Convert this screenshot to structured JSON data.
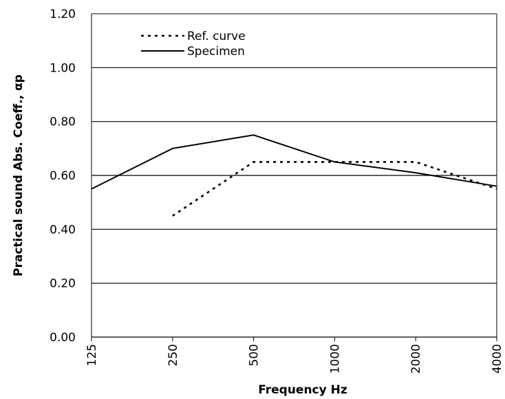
{
  "chart_data": {
    "type": "line",
    "title": "",
    "xlabel": "Frequency Hz",
    "ylabel": "Practical sound Abs. Coeff., αp",
    "categories": [
      "125",
      "250",
      "500",
      "1000",
      "2000",
      "4000"
    ],
    "y_ticks": [
      "0.00",
      "0.20",
      "0.40",
      "0.60",
      "0.80",
      "1.00",
      "1.20"
    ],
    "ylim": [
      0,
      1.2
    ],
    "grid": true,
    "legend_position": "top-left",
    "series": [
      {
        "name": "Ref. curve",
        "style": "dotted",
        "values": [
          null,
          0.45,
          0.65,
          0.65,
          0.65,
          0.55
        ]
      },
      {
        "name": "Specimen",
        "style": "solid",
        "values": [
          0.55,
          0.7,
          0.75,
          0.65,
          0.61,
          0.56
        ]
      }
    ],
    "colors": {
      "line": "#000000",
      "grid": "#000000"
    }
  }
}
